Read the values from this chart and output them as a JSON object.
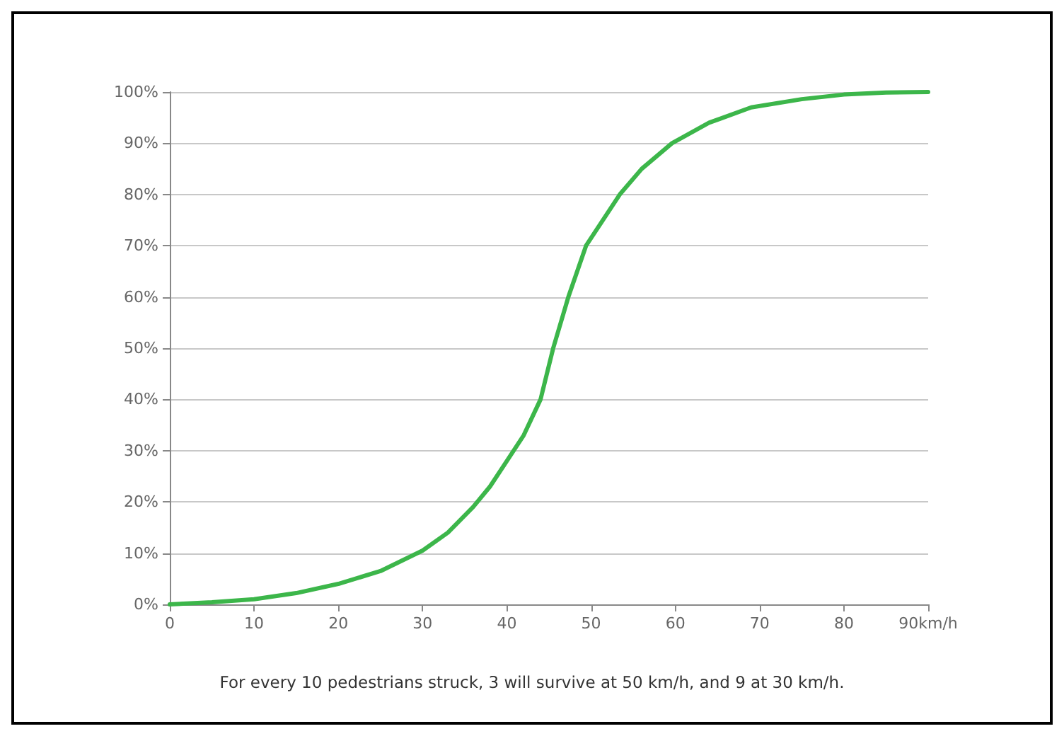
{
  "chart_data": {
    "type": "line",
    "x": [
      0,
      5,
      10,
      15,
      20,
      25,
      30,
      33,
      36,
      38,
      40,
      42,
      44,
      45.5,
      47.3,
      49.4,
      53.4,
      56,
      59.6,
      64,
      69,
      75,
      80,
      85,
      90
    ],
    "series": [
      {
        "color": "#3cb64a",
        "values": [
          0,
          0.4,
          1,
          2.2,
          4,
          6.5,
          10.5,
          14,
          19,
          23,
          28,
          33,
          40,
          50,
          60,
          70,
          80,
          85,
          90,
          94,
          97,
          98.6,
          99.5,
          99.9,
          100
        ]
      }
    ],
    "xlim": [
      0,
      90
    ],
    "xticks": [
      0,
      10,
      20,
      30,
      40,
      50,
      60,
      70,
      80,
      {
        "value": 90,
        "label": "90km/h"
      }
    ],
    "ylim": [
      0,
      100
    ],
    "yticks": [
      {
        "value": 0,
        "label": "0%"
      },
      {
        "value": 10,
        "label": "10%"
      },
      {
        "value": 20,
        "label": "20%"
      },
      {
        "value": 30,
        "label": "30%"
      },
      {
        "value": 40,
        "label": "40%"
      },
      {
        "value": 50,
        "label": "50%"
      },
      {
        "value": 60,
        "label": "60%"
      },
      {
        "value": 70,
        "label": "70%"
      },
      {
        "value": 80,
        "label": "80%"
      },
      {
        "value": 90,
        "label": "90%"
      },
      {
        "value": 100,
        "label": "100%"
      }
    ],
    "grid": "y",
    "marker": "none",
    "line_style": "solid",
    "annotations": [
      "For every 10 pedestrians struck, 3 will survive at 50 km/h, and 9 at 30 km/h."
    ]
  }
}
